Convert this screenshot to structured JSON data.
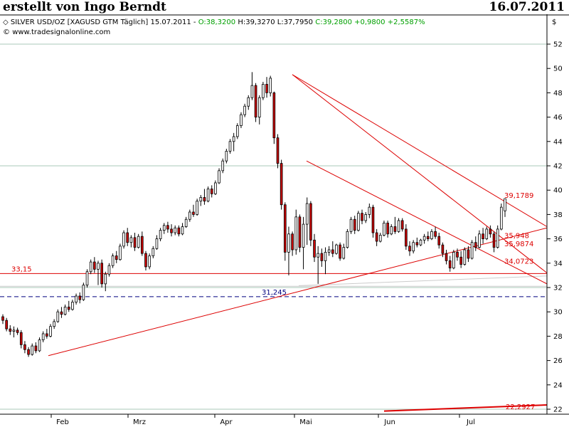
{
  "header": {
    "author": "erstellt von Ingo Berndt",
    "date": "16.07.2011"
  },
  "legend": {
    "symbol_prefix": "SILVER USD/OZ [XAGUSD GTM  Täglich] 15.07.2011 - ",
    "open": "O:38,3200",
    "high": "H:39,3270",
    "low": "L:37,7950",
    "close": "C:39,2800",
    "change": "+0,9800",
    "change_pct": "+2,5587%",
    "source": "www.tradesignalonline.com",
    "currency": "$"
  },
  "colors": {
    "up_candle": "#ffffff",
    "down_candle": "#cc0000",
    "trendline": "#dd0000",
    "grid": "#a8c8b8",
    "close_text": "#00a000",
    "dashed_level": "#000080"
  },
  "chart_data": {
    "type": "candlestick",
    "x_labels": [
      "Feb",
      "Mrz",
      "Apr",
      "Mai",
      "Jun",
      "Jul"
    ],
    "y_ticks": [
      22,
      24,
      26,
      28,
      30,
      32,
      34,
      36,
      38,
      40,
      42,
      44,
      46,
      48,
      50,
      52
    ],
    "ylim": [
      21.5,
      53.5
    ],
    "grid_horizontal": [
      22,
      32,
      42,
      52
    ],
    "annotations": [
      {
        "label": "33,15",
        "value": 33.15
      },
      {
        "label": "31,245",
        "value": 31.245
      },
      {
        "label": "39,1789",
        "value": 39.1789
      },
      {
        "label": "35,948",
        "value": 35.948
      },
      {
        "label": "35,9874",
        "value": 35.9874
      },
      {
        "label": "34,0723",
        "value": 34.0723
      },
      {
        "label": "22,2927",
        "value": 22.2927
      }
    ],
    "ohlc": [
      [
        29.6,
        29.8,
        29.0,
        29.3
      ],
      [
        29.3,
        29.5,
        28.4,
        28.6
      ],
      [
        28.6,
        28.9,
        28.1,
        28.4
      ],
      [
        28.4,
        28.8,
        27.9,
        28.5
      ],
      [
        28.5,
        28.7,
        28.1,
        28.3
      ],
      [
        28.3,
        28.5,
        27.0,
        27.3
      ],
      [
        27.3,
        27.6,
        26.6,
        26.9
      ],
      [
        26.9,
        27.1,
        26.3,
        26.5
      ],
      [
        26.5,
        27.4,
        26.4,
        27.2
      ],
      [
        27.2,
        27.5,
        26.6,
        26.8
      ],
      [
        26.8,
        27.9,
        26.7,
        27.7
      ],
      [
        27.7,
        28.4,
        27.5,
        28.2
      ],
      [
        28.2,
        28.6,
        27.8,
        28.0
      ],
      [
        28.0,
        29.0,
        27.9,
        28.8
      ],
      [
        28.8,
        29.4,
        28.6,
        29.2
      ],
      [
        29.2,
        30.2,
        29.1,
        30.0
      ],
      [
        30.0,
        30.4,
        29.5,
        29.8
      ],
      [
        29.8,
        30.6,
        29.7,
        30.4
      ],
      [
        30.4,
        30.9,
        30.0,
        30.2
      ],
      [
        30.2,
        31.0,
        30.1,
        30.8
      ],
      [
        30.8,
        31.5,
        30.6,
        31.3
      ],
      [
        31.3,
        31.6,
        30.7,
        31.0
      ],
      [
        31.0,
        32.4,
        30.9,
        32.2
      ],
      [
        32.2,
        33.5,
        32.0,
        33.3
      ],
      [
        33.3,
        34.3,
        33.1,
        34.1
      ],
      [
        34.1,
        34.5,
        33.2,
        33.5
      ],
      [
        33.5,
        34.2,
        32.2,
        34.0
      ],
      [
        34.0,
        34.3,
        32.0,
        32.3
      ],
      [
        32.3,
        33.3,
        31.7,
        33.1
      ],
      [
        33.1,
        34.0,
        32.9,
        33.8
      ],
      [
        33.8,
        34.8,
        33.6,
        34.6
      ],
      [
        34.6,
        35.0,
        34.0,
        34.3
      ],
      [
        34.3,
        35.6,
        34.2,
        35.4
      ],
      [
        35.4,
        36.7,
        35.2,
        36.5
      ],
      [
        36.5,
        36.9,
        35.4,
        35.7
      ],
      [
        35.7,
        36.3,
        35.3,
        36.1
      ],
      [
        36.1,
        36.5,
        35.0,
        35.3
      ],
      [
        35.3,
        36.4,
        35.2,
        36.2
      ],
      [
        36.2,
        36.6,
        34.6,
        34.8
      ],
      [
        34.8,
        35.0,
        33.4,
        33.7
      ],
      [
        33.7,
        34.8,
        33.5,
        34.6
      ],
      [
        34.6,
        35.4,
        34.4,
        35.2
      ],
      [
        35.2,
        36.3,
        35.1,
        36.0
      ],
      [
        36.0,
        36.9,
        35.8,
        36.7
      ],
      [
        36.7,
        37.3,
        36.4,
        37.1
      ],
      [
        37.1,
        37.4,
        36.5,
        36.8
      ],
      [
        36.8,
        37.2,
        36.2,
        36.5
      ],
      [
        36.5,
        37.1,
        36.3,
        36.9
      ],
      [
        36.9,
        37.1,
        36.2,
        36.4
      ],
      [
        36.4,
        37.3,
        36.3,
        37.0
      ],
      [
        37.0,
        37.8,
        36.9,
        37.6
      ],
      [
        37.6,
        38.4,
        37.4,
        38.2
      ],
      [
        38.2,
        38.8,
        37.8,
        38.0
      ],
      [
        38.0,
        39.3,
        37.9,
        39.1
      ],
      [
        39.1,
        39.6,
        38.7,
        39.4
      ],
      [
        39.4,
        40.1,
        38.8,
        39.1
      ],
      [
        39.1,
        40.3,
        39.0,
        40.1
      ],
      [
        40.1,
        40.4,
        39.4,
        39.7
      ],
      [
        39.7,
        40.8,
        39.6,
        40.6
      ],
      [
        40.6,
        41.8,
        40.5,
        41.6
      ],
      [
        41.6,
        42.6,
        41.4,
        42.4
      ],
      [
        42.4,
        43.4,
        42.2,
        43.2
      ],
      [
        43.2,
        44.2,
        43.0,
        44.0
      ],
      [
        44.0,
        44.7,
        43.2,
        44.4
      ],
      [
        44.4,
        45.5,
        44.2,
        45.3
      ],
      [
        45.3,
        46.4,
        45.1,
        46.2
      ],
      [
        46.2,
        47.1,
        46.0,
        46.9
      ],
      [
        46.9,
        47.8,
        46.6,
        47.6
      ],
      [
        47.6,
        49.7,
        47.4,
        48.6
      ],
      [
        48.6,
        48.8,
        45.6,
        46.0
      ],
      [
        46.0,
        47.8,
        45.4,
        47.6
      ],
      [
        47.6,
        48.9,
        47.4,
        48.7
      ],
      [
        48.7,
        49.3,
        47.6,
        48.0
      ],
      [
        48.0,
        49.4,
        47.7,
        49.2
      ],
      [
        48.0,
        48.1,
        43.8,
        44.3
      ],
      [
        44.3,
        44.6,
        41.8,
        42.2
      ],
      [
        42.2,
        42.5,
        38.4,
        38.8
      ],
      [
        38.8,
        39.0,
        34.2,
        34.9
      ],
      [
        34.9,
        37.0,
        33.0,
        36.4
      ],
      [
        36.4,
        36.6,
        34.6,
        35.1
      ],
      [
        35.1,
        38.4,
        34.7,
        37.8
      ],
      [
        37.8,
        38.0,
        34.9,
        35.3
      ],
      [
        35.3,
        37.8,
        33.5,
        37.2
      ],
      [
        37.2,
        39.4,
        35.5,
        38.9
      ],
      [
        38.9,
        39.1,
        35.4,
        35.9
      ],
      [
        35.9,
        36.4,
        34.1,
        34.5
      ],
      [
        34.5,
        35.4,
        32.3,
        34.8
      ],
      [
        34.8,
        35.2,
        33.7,
        34.2
      ],
      [
        34.2,
        35.3,
        33.1,
        34.9
      ],
      [
        34.9,
        35.4,
        34.6,
        35.1
      ],
      [
        35.1,
        35.8,
        34.5,
        34.8
      ],
      [
        34.8,
        35.6,
        34.7,
        35.5
      ],
      [
        35.5,
        35.7,
        34.2,
        34.4
      ],
      [
        34.4,
        35.6,
        34.3,
        35.3
      ],
      [
        35.3,
        36.8,
        35.2,
        36.6
      ],
      [
        36.6,
        37.8,
        36.4,
        37.6
      ],
      [
        37.6,
        37.9,
        36.4,
        36.7
      ],
      [
        36.7,
        38.3,
        36.6,
        38.1
      ],
      [
        38.1,
        38.4,
        37.2,
        37.5
      ],
      [
        37.5,
        38.2,
        37.3,
        38.0
      ],
      [
        38.0,
        38.9,
        37.7,
        38.6
      ],
      [
        38.6,
        38.8,
        36.1,
        36.5
      ],
      [
        36.5,
        36.8,
        35.4,
        35.8
      ],
      [
        35.8,
        36.5,
        35.7,
        36.3
      ],
      [
        36.3,
        37.5,
        36.2,
        37.3
      ],
      [
        37.3,
        37.5,
        36.1,
        36.4
      ],
      [
        36.4,
        37.2,
        36.3,
        37.0
      ],
      [
        37.0,
        37.8,
        36.4,
        36.6
      ],
      [
        36.6,
        37.7,
        36.5,
        37.5
      ],
      [
        37.5,
        37.7,
        36.6,
        36.8
      ],
      [
        36.8,
        37.2,
        35.1,
        35.4
      ],
      [
        35.4,
        35.8,
        34.6,
        35.0
      ],
      [
        35.0,
        35.9,
        34.8,
        35.7
      ],
      [
        35.7,
        36.1,
        35.3,
        35.5
      ],
      [
        35.5,
        36.0,
        35.4,
        35.9
      ],
      [
        35.9,
        36.4,
        35.6,
        36.2
      ],
      [
        36.2,
        36.6,
        35.8,
        36.0
      ],
      [
        36.0,
        36.8,
        35.9,
        36.6
      ],
      [
        36.6,
        37.0,
        36.0,
        36.2
      ],
      [
        36.2,
        36.5,
        35.2,
        35.5
      ],
      [
        35.5,
        35.7,
        34.5,
        34.8
      ],
      [
        34.8,
        35.1,
        33.9,
        34.2
      ],
      [
        34.2,
        34.6,
        33.3,
        33.6
      ],
      [
        33.6,
        35.1,
        33.5,
        34.9
      ],
      [
        34.9,
        35.2,
        34.2,
        34.5
      ],
      [
        34.5,
        35.0,
        33.6,
        33.9
      ],
      [
        33.9,
        35.3,
        33.8,
        35.1
      ],
      [
        35.1,
        35.4,
        34.1,
        34.4
      ],
      [
        34.4,
        35.9,
        34.3,
        35.7
      ],
      [
        35.7,
        36.2,
        35.0,
        35.3
      ],
      [
        35.3,
        36.7,
        35.2,
        36.4
      ],
      [
        36.4,
        36.9,
        35.6,
        36.0
      ],
      [
        36.0,
        37.0,
        35.9,
        36.8
      ],
      [
        36.8,
        37.1,
        36.1,
        36.4
      ],
      [
        36.4,
        36.6,
        34.9,
        35.3
      ],
      [
        35.3,
        37.1,
        35.2,
        36.8
      ],
      [
        36.8,
        38.9,
        36.7,
        38.6
      ],
      [
        38.3,
        39.3,
        37.8,
        39.3
      ]
    ]
  }
}
